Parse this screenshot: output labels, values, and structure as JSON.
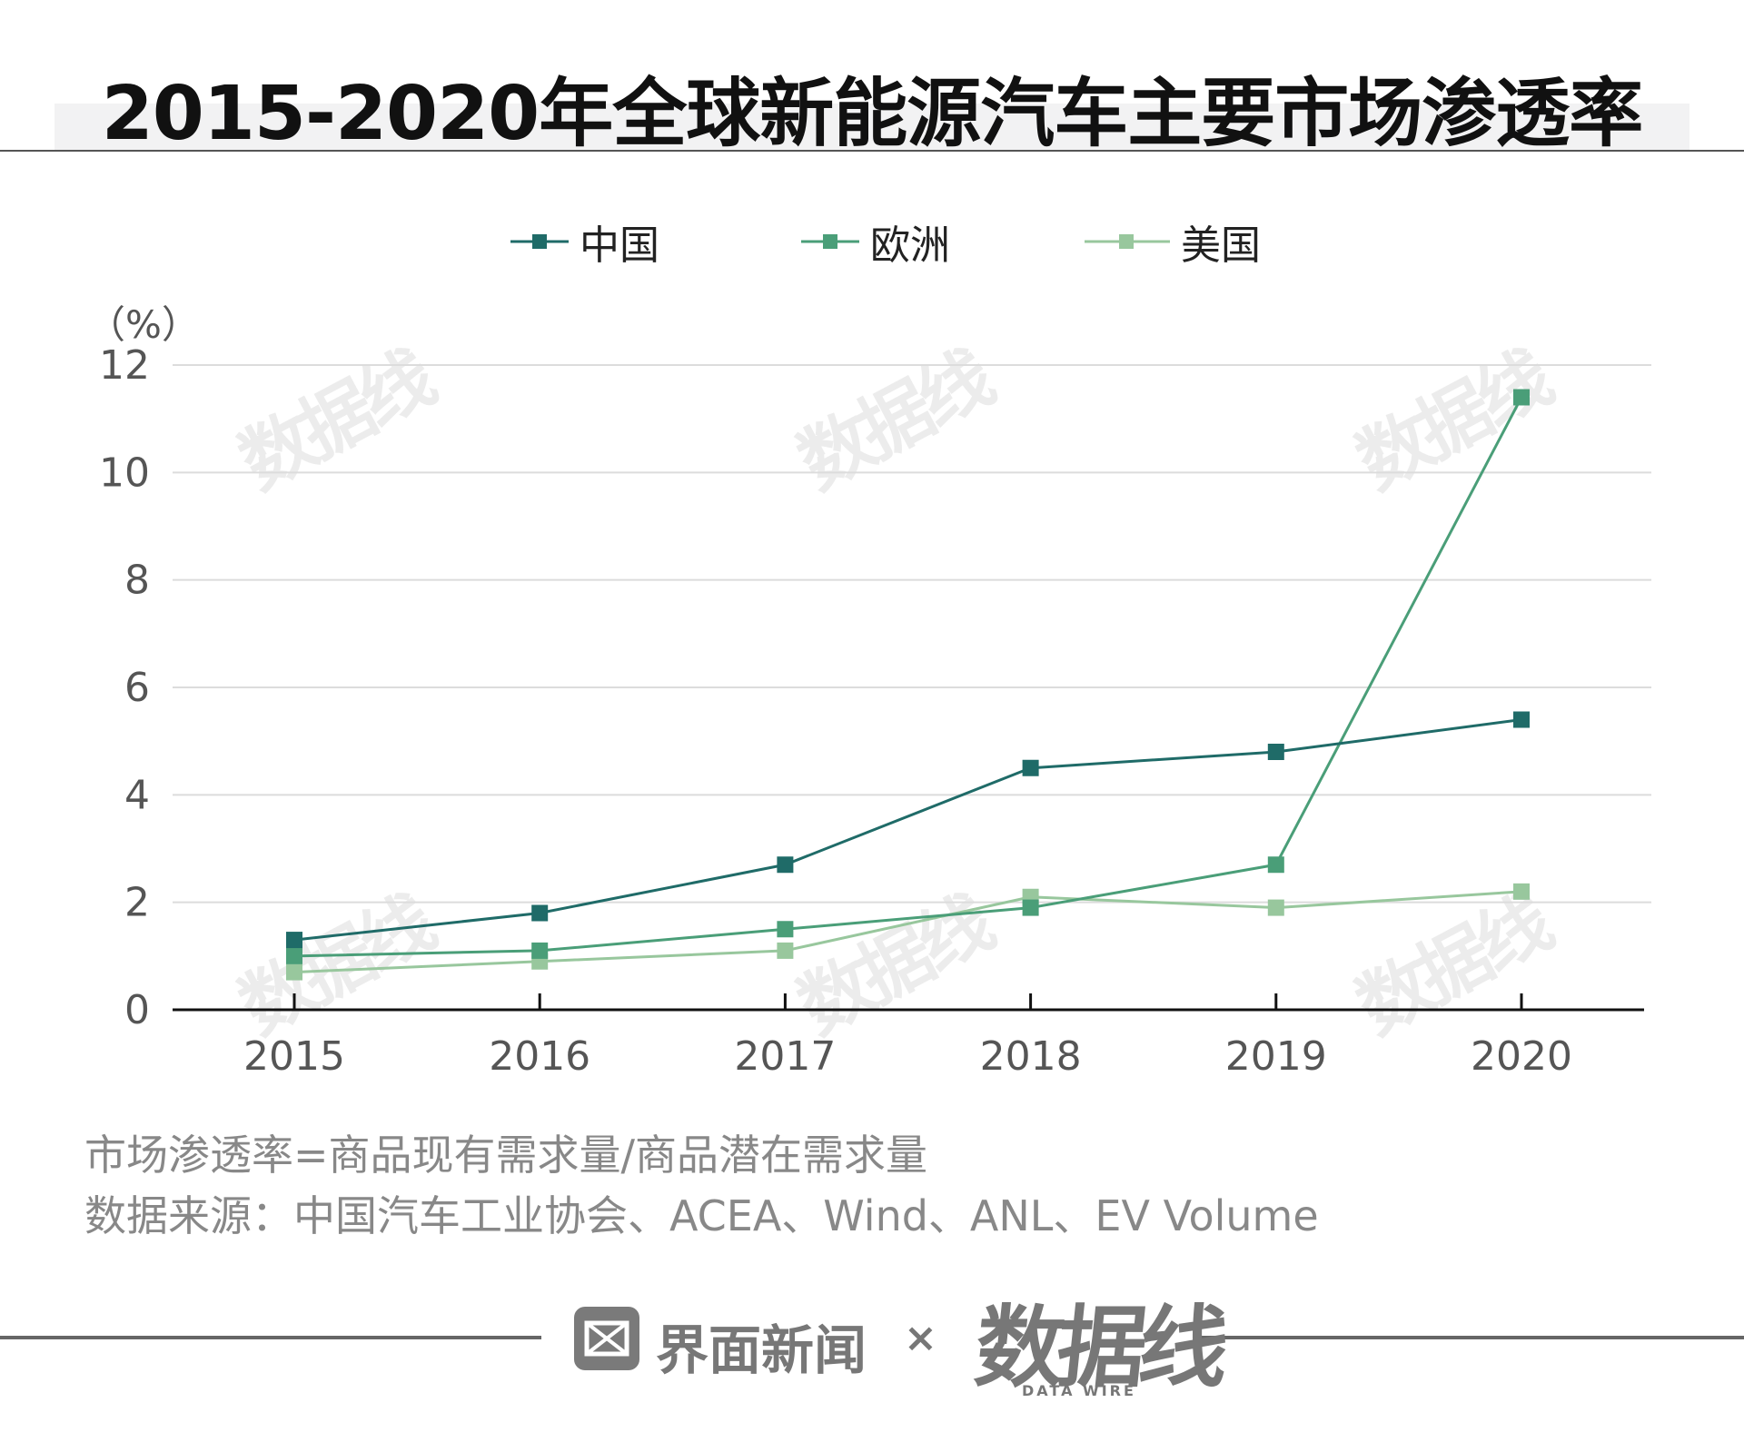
{
  "title": "2015-2020年全球新能源汽车主要市场渗透率",
  "chart_data": {
    "type": "line",
    "title": "2015-2020年全球新能源汽车主要市场渗透率",
    "ylabel": "（%）",
    "xlabel": "",
    "categories": [
      "2015",
      "2016",
      "2017",
      "2018",
      "2019",
      "2020"
    ],
    "ylim": [
      0,
      12
    ],
    "yticks": [
      "0",
      "2",
      "4",
      "6",
      "8",
      "10",
      "12"
    ],
    "grid": true,
    "legend_position": "top-center",
    "series": [
      {
        "name": "中国",
        "color": "#1f6b68",
        "values": [
          1.3,
          1.8,
          2.7,
          4.5,
          4.8,
          5.4
        ]
      },
      {
        "name": "欧洲",
        "color": "#4a9e78",
        "values": [
          1.0,
          1.1,
          1.5,
          1.9,
          2.7,
          11.4
        ]
      },
      {
        "name": "美国",
        "color": "#98c79d",
        "values": [
          0.7,
          0.9,
          1.1,
          2.1,
          1.9,
          2.2
        ]
      }
    ]
  },
  "notes": {
    "definition": "市场渗透率=商品现有需求量/商品潜在需求量",
    "source": "数据来源：中国汽车工业协会、ACEA、Wind、ANL、EV Volume"
  },
  "footer": {
    "brand1": "界面新闻",
    "separator": "×",
    "brand2": "数据线",
    "brand2_sub": "DATA WIRE"
  },
  "watermark": "数据线"
}
